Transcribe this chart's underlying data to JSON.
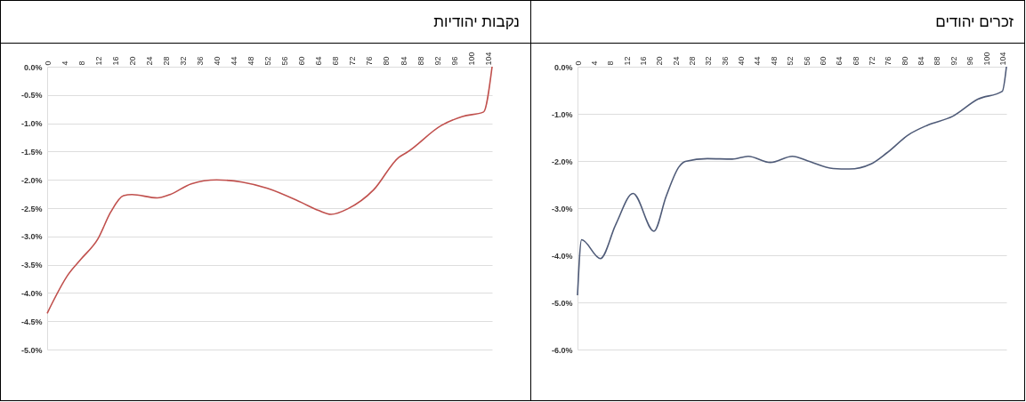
{
  "chart_data": [
    {
      "type": "line",
      "title": "נקבות יהודיות",
      "xlim": [
        0,
        105
      ],
      "xticks": [
        0,
        4,
        8,
        12,
        16,
        20,
        24,
        28,
        32,
        36,
        40,
        44,
        48,
        52,
        56,
        60,
        64,
        68,
        72,
        76,
        80,
        84,
        88,
        92,
        96,
        100,
        104
      ],
      "ylim": [
        -5,
        0
      ],
      "yticks": [
        {
          "value": 0,
          "label": "0.0%"
        },
        {
          "value": -0.5,
          "label": "-0.5%"
        },
        {
          "value": -1,
          "label": "-1.0%"
        },
        {
          "value": -1.5,
          "label": "-1.5%"
        },
        {
          "value": -2,
          "label": "-2.0%"
        },
        {
          "value": -2.5,
          "label": "-2.5%"
        },
        {
          "value": -3,
          "label": "-3.0%"
        },
        {
          "value": -3.5,
          "label": "-3.5%"
        },
        {
          "value": -4,
          "label": "-4.0%"
        },
        {
          "value": -4.5,
          "label": "-4.5%"
        },
        {
          "value": -5,
          "label": "-5.0%"
        }
      ],
      "grid": "y",
      "marker": "none",
      "line_style": "solid",
      "series": [
        {
          "color": "#c0504d",
          "x": [
            0,
            5,
            8,
            12,
            15,
            18,
            20,
            26,
            29,
            34,
            40,
            46,
            52,
            60,
            64,
            67,
            71,
            77,
            83,
            85,
            93,
            98,
            103,
            105
          ],
          "values": [
            -4.36,
            -3.67,
            -3.4,
            -3.04,
            -2.57,
            -2.28,
            -2.26,
            -2.32,
            -2.26,
            -2.07,
            -2.0,
            -2.04,
            -2.15,
            -2.4,
            -2.54,
            -2.61,
            -2.51,
            -2.18,
            -1.6,
            -1.51,
            -1.04,
            -0.88,
            -0.8,
            0.0
          ]
        }
      ]
    },
    {
      "type": "line",
      "title": "זכרים יהודים",
      "xlim": [
        0,
        105
      ],
      "xticks": [
        0,
        4,
        8,
        12,
        16,
        20,
        24,
        28,
        32,
        36,
        40,
        44,
        48,
        52,
        56,
        60,
        64,
        68,
        72,
        76,
        80,
        84,
        88,
        92,
        96,
        100,
        104
      ],
      "ylim": [
        -6,
        0
      ],
      "yticks": [
        {
          "value": 0,
          "label": "0.0%"
        },
        {
          "value": -1,
          "label": "-1.0%"
        },
        {
          "value": -2,
          "label": "-2.0%"
        },
        {
          "value": -3,
          "label": "-3.0%"
        },
        {
          "value": -4,
          "label": "-4.0%"
        },
        {
          "value": -5,
          "label": "-5.0%"
        },
        {
          "value": -6,
          "label": "-6.0%"
        }
      ],
      "grid": "y",
      "marker": "none",
      "line_style": "solid",
      "series": [
        {
          "color": "#4f5b78",
          "x": [
            0,
            1,
            5.6,
            9.4,
            13.6,
            18.7,
            21.7,
            24.8,
            26.4,
            31.8,
            37.9,
            41.8,
            47.2,
            52.6,
            56.4,
            62.6,
            66.5,
            71.9,
            75.7,
            81.1,
            85.7,
            91.9,
            98,
            104,
            105
          ],
          "values": [
            -4.85,
            -3.67,
            -4.07,
            -3.34,
            -2.69,
            -3.49,
            -2.75,
            -2.13,
            -2.01,
            -1.95,
            -1.96,
            -1.9,
            -2.03,
            -1.9,
            -2.0,
            -2.16,
            -2.17,
            -2.06,
            -1.83,
            -1.44,
            -1.24,
            -1.05,
            -0.69,
            -0.52,
            0.0
          ]
        }
      ]
    }
  ]
}
